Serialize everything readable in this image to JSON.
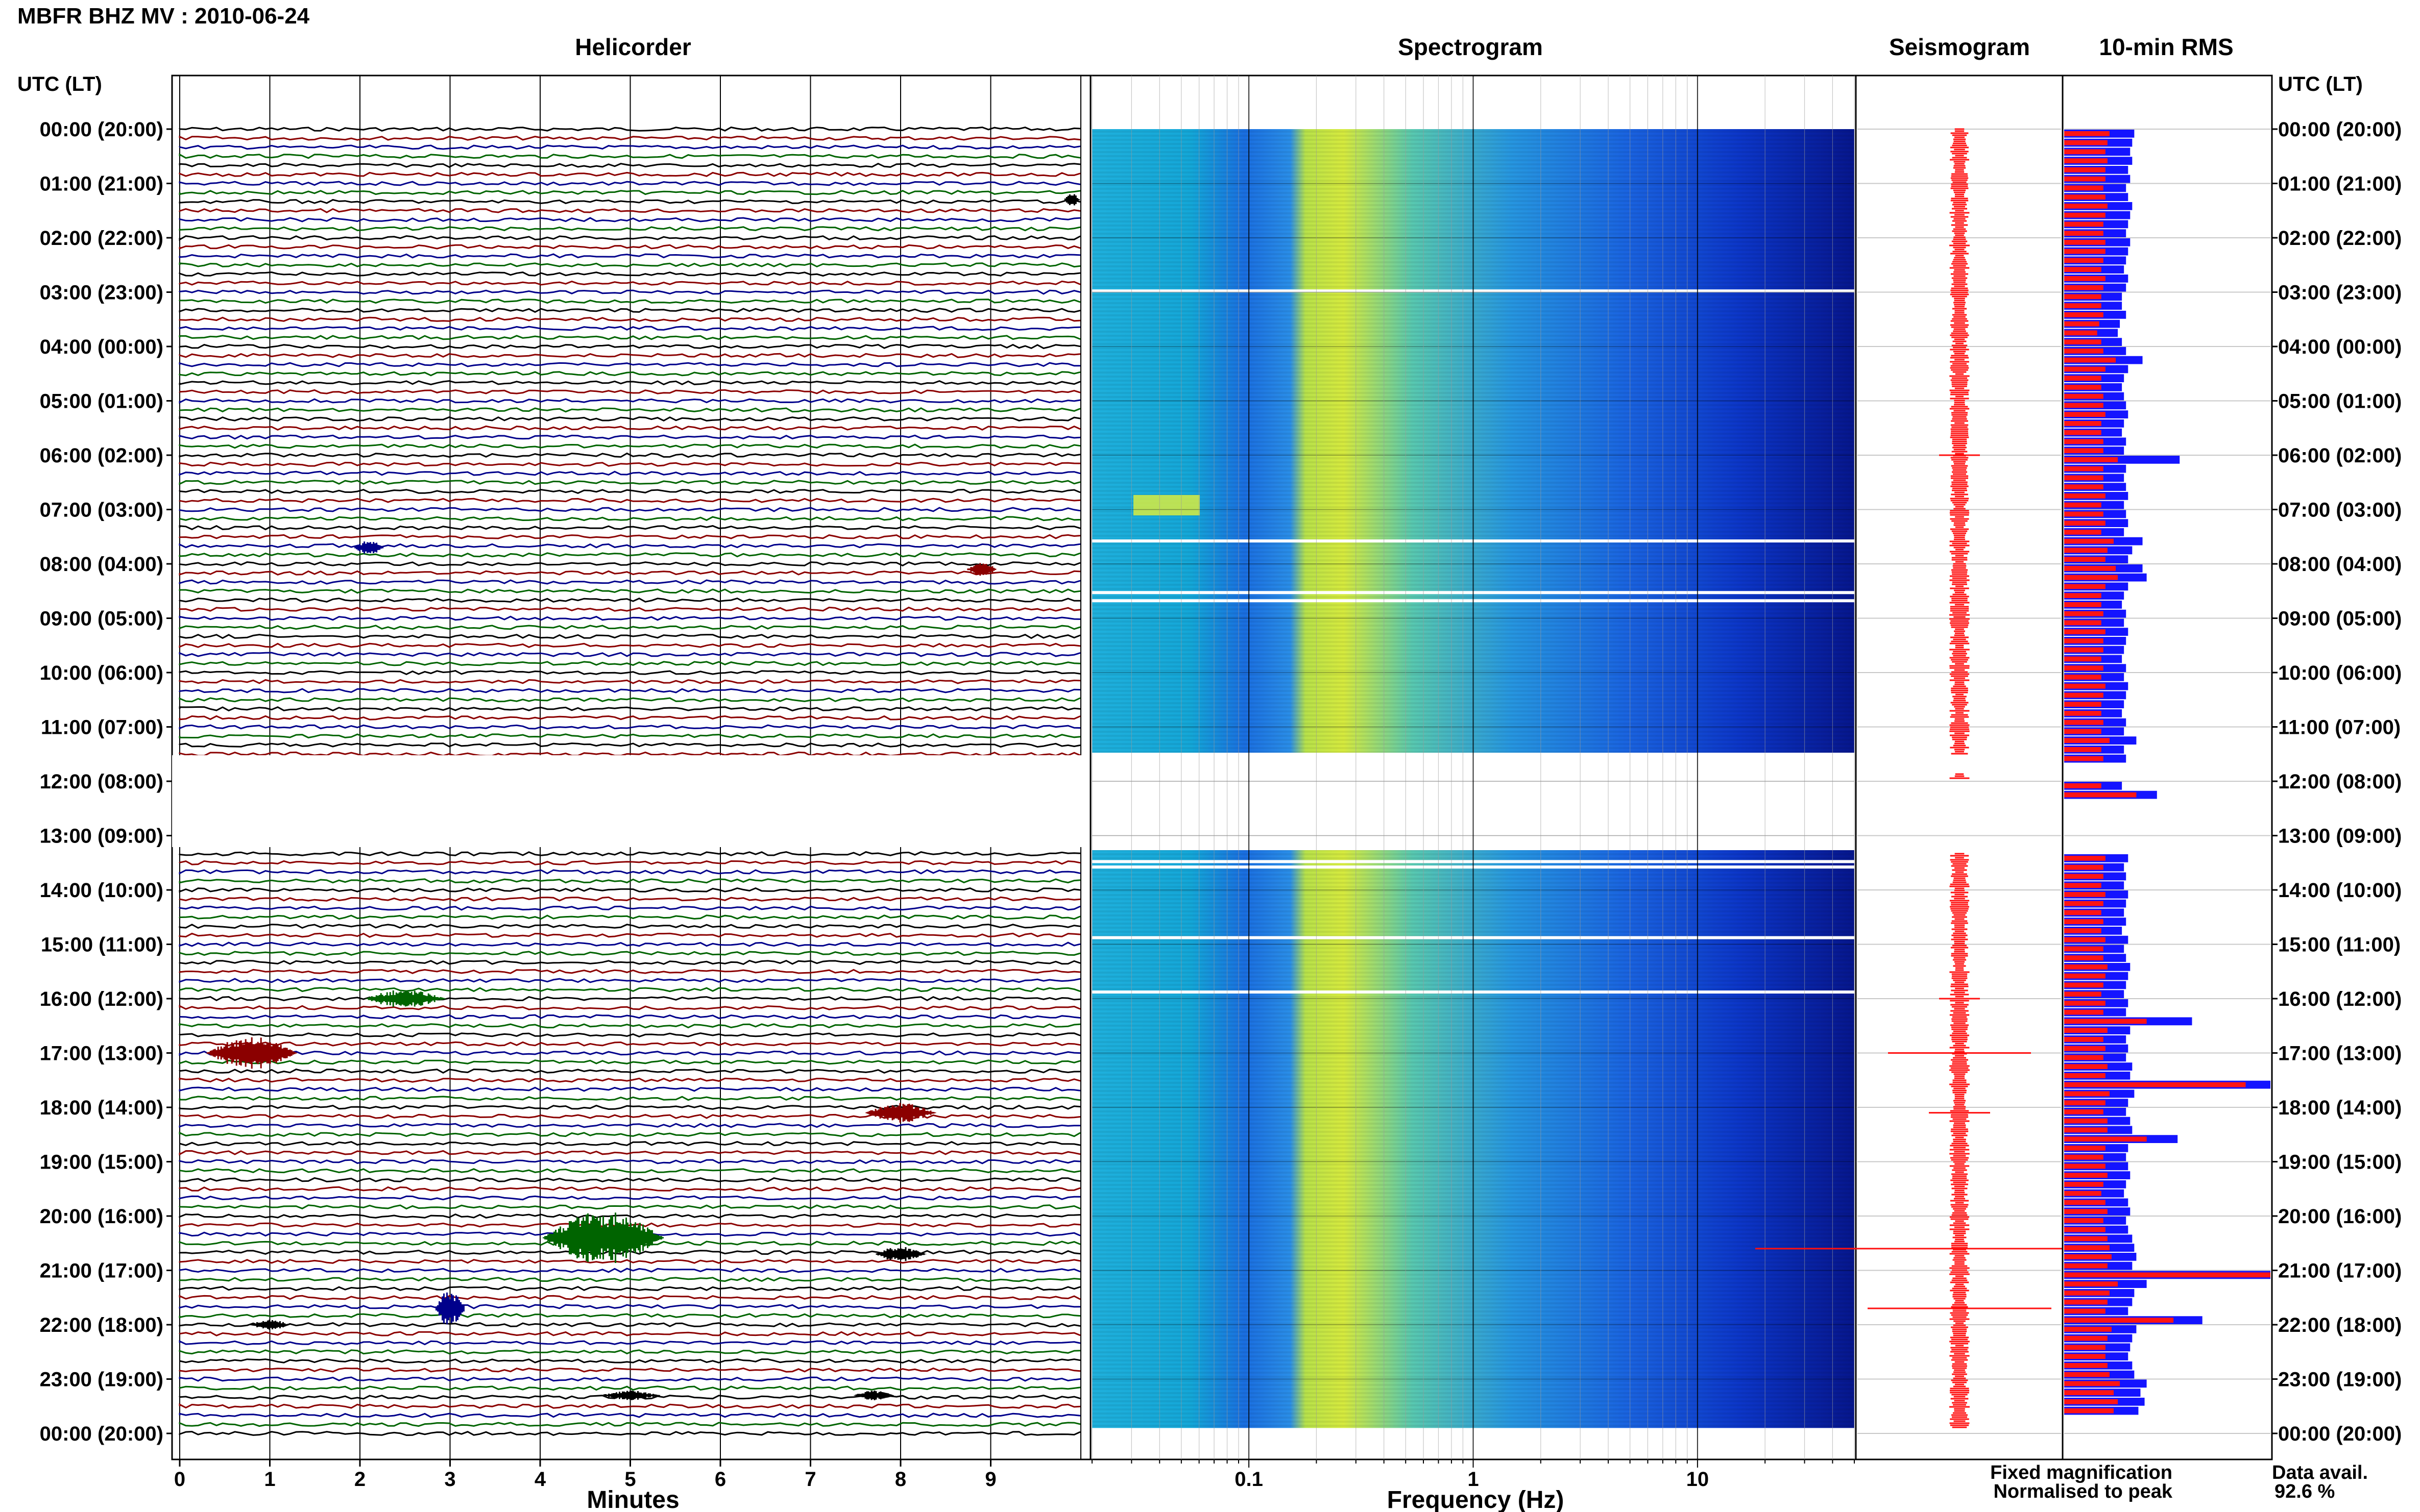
{
  "header": {
    "station": "MBFR BHZ MV : 2010-06-24"
  },
  "panels": {
    "helicorder": "Helicorder",
    "spectrogram": "Spectrogram",
    "seismogram": "Seismogram",
    "rms": "10-min RMS"
  },
  "axes": {
    "time_left_label": "UTC (LT)",
    "time_right_label": "UTC (LT)",
    "minutes_label": "Minutes",
    "frequency_label": "Frequency (Hz)"
  },
  "legend": {
    "fixed": "Fixed magnification",
    "normalised": "Normalised to peak",
    "fixed_color": "#1414ff",
    "normalised_color": "#ff1414"
  },
  "availability": {
    "label": "Data avail.",
    "value": "92.6 %"
  },
  "chart_data": {
    "type": "heatmap",
    "time_ticks": [
      "00:00 (20:00)",
      "01:00 (21:00)",
      "02:00 (22:00)",
      "03:00 (23:00)",
      "04:00 (00:00)",
      "05:00 (01:00)",
      "06:00 (02:00)",
      "07:00 (03:00)",
      "08:00 (04:00)",
      "09:00 (05:00)",
      "10:00 (06:00)",
      "11:00 (07:00)",
      "12:00 (08:00)",
      "13:00 (09:00)",
      "14:00 (10:00)",
      "15:00 (11:00)",
      "16:00 (12:00)",
      "17:00 (13:00)",
      "18:00 (14:00)",
      "19:00 (15:00)",
      "20:00 (16:00)",
      "21:00 (17:00)",
      "22:00 (18:00)",
      "23:00 (19:00)",
      "00:00 (20:00)"
    ],
    "minute_ticks": [
      "0",
      "1",
      "2",
      "3",
      "4",
      "5",
      "6",
      "7",
      "8",
      "9"
    ],
    "frequency_ticks": [
      "0.1",
      "1",
      "10"
    ],
    "frequency_range_hz": [
      0.02,
      50
    ],
    "trace_colors": [
      "#000000",
      "#8b0000",
      "#00008b",
      "#006400"
    ],
    "data_gap_hours": [
      11.5,
      13.3
    ],
    "rms_fixed": [
      0.34,
      0.33,
      0.32,
      0.33,
      0.31,
      0.32,
      0.3,
      0.31,
      0.33,
      0.32,
      0.31,
      0.3,
      0.32,
      0.31,
      0.3,
      0.29,
      0.31,
      0.3,
      0.28,
      0.28,
      0.3,
      0.27,
      0.26,
      0.28,
      0.3,
      0.38,
      0.31,
      0.29,
      0.28,
      0.29,
      0.3,
      0.31,
      0.29,
      0.28,
      0.3,
      0.29,
      0.56,
      0.3,
      0.29,
      0.3,
      0.31,
      0.29,
      0.3,
      0.31,
      0.29,
      0.38,
      0.33,
      0.31,
      0.38,
      0.4,
      0.31,
      0.29,
      0.28,
      0.3,
      0.29,
      0.31,
      0.3,
      0.29,
      0.28,
      0.3,
      0.29,
      0.31,
      0.3,
      0.29,
      0.28,
      0.3,
      0.29,
      0.35,
      0.29,
      0.3,
      0,
      0,
      0.28,
      0.45,
      0,
      0,
      0,
      0,
      0,
      0,
      0.31,
      0.29,
      0.3,
      0.29,
      0.31,
      0.3,
      0.29,
      0.3,
      0.28,
      0.31,
      0.29,
      0.3,
      0.32,
      0.31,
      0.3,
      0.29,
      0.31,
      0.3,
      0.62,
      0.32,
      0.3,
      0.31,
      0.3,
      0.33,
      0.32,
      1.1,
      0.34,
      0.31,
      0.3,
      0.32,
      0.33,
      0.55,
      0.31,
      0.3,
      0.31,
      0.32,
      0.3,
      0.29,
      0.31,
      0.32,
      0.3,
      0.31,
      0.33,
      0.34,
      0.35,
      0.33,
      1.3,
      0.4,
      0.34,
      0.33,
      0.31,
      0.67,
      0.35,
      0.33,
      0.32,
      0.31,
      0.33,
      0.34,
      0.4,
      0.37,
      0.39,
      0.36
    ],
    "rms_normalised": [
      0.22,
      0.21,
      0.2,
      0.21,
      0.2,
      0.2,
      0.19,
      0.2,
      0.21,
      0.2,
      0.19,
      0.19,
      0.2,
      0.2,
      0.19,
      0.18,
      0.2,
      0.19,
      0.18,
      0.18,
      0.19,
      0.17,
      0.16,
      0.18,
      0.19,
      0.25,
      0.2,
      0.18,
      0.18,
      0.19,
      0.19,
      0.2,
      0.18,
      0.18,
      0.19,
      0.19,
      0.26,
      0.19,
      0.19,
      0.19,
      0.2,
      0.18,
      0.19,
      0.2,
      0.18,
      0.24,
      0.21,
      0.2,
      0.25,
      0.26,
      0.2,
      0.18,
      0.18,
      0.19,
      0.18,
      0.2,
      0.19,
      0.19,
      0.18,
      0.19,
      0.18,
      0.2,
      0.19,
      0.18,
      0.18,
      0.19,
      0.18,
      0.22,
      0.18,
      0.19,
      0,
      0,
      0.18,
      0.35,
      0,
      0,
      0,
      0,
      0,
      0,
      0.2,
      0.19,
      0.19,
      0.18,
      0.2,
      0.19,
      0.18,
      0.19,
      0.18,
      0.2,
      0.19,
      0.19,
      0.21,
      0.2,
      0.19,
      0.18,
      0.2,
      0.19,
      0.4,
      0.21,
      0.19,
      0.2,
      0.19,
      0.21,
      0.2,
      0.88,
      0.22,
      0.2,
      0.19,
      0.21,
      0.21,
      0.4,
      0.2,
      0.19,
      0.2,
      0.21,
      0.19,
      0.18,
      0.2,
      0.21,
      0.19,
      0.2,
      0.21,
      0.22,
      0.23,
      0.21,
      1.3,
      0.26,
      0.22,
      0.21,
      0.2,
      0.53,
      0.23,
      0.21,
      0.2,
      0.2,
      0.21,
      0.22,
      0.27,
      0.24,
      0.26,
      0.24
    ]
  }
}
